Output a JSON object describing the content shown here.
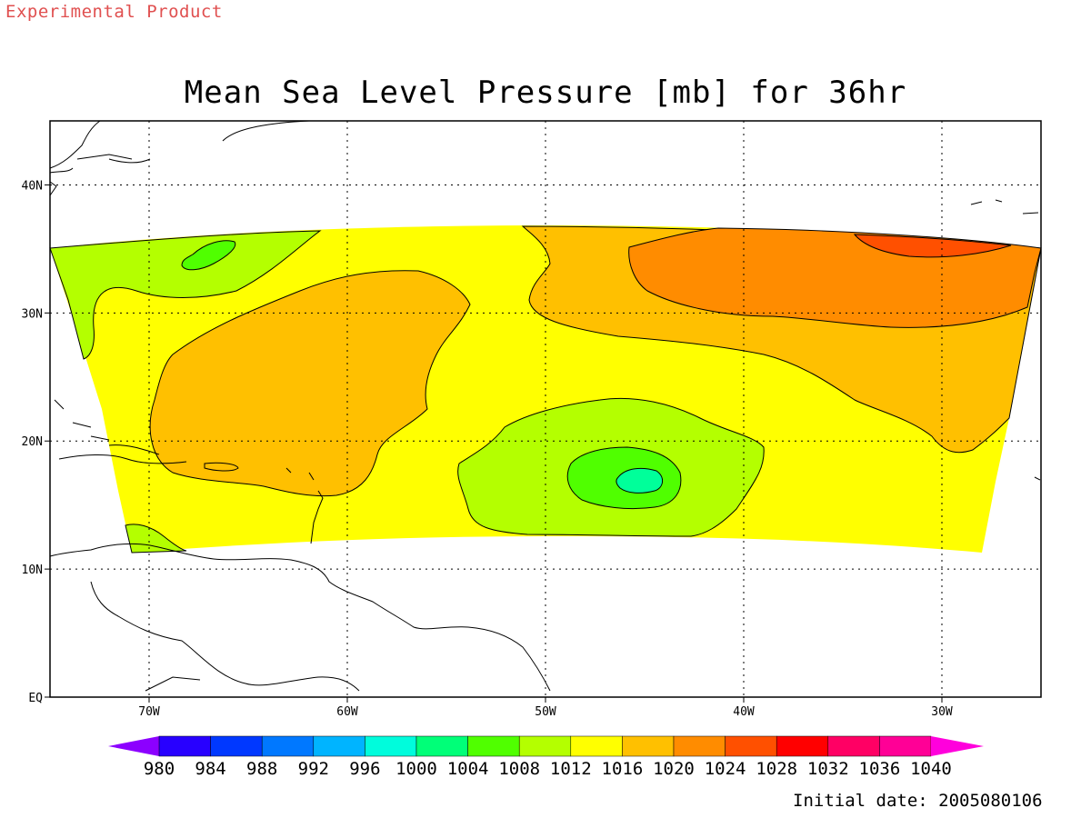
{
  "product_label": "Experimental Product",
  "title": "Mean Sea Level Pressure [mb] for 36hr",
  "initial_date": "Initial date: 2005080106",
  "map": {
    "projection": "lon-lat",
    "lon_range": [
      -75,
      -25
    ],
    "lat_range": [
      0,
      45
    ],
    "grid": "dotted",
    "lon_ticks": [
      {
        "value": -70,
        "label": "70W"
      },
      {
        "value": -60,
        "label": "60W"
      },
      {
        "value": -50,
        "label": "50W"
      },
      {
        "value": -40,
        "label": "40W"
      },
      {
        "value": -30,
        "label": "30W"
      }
    ],
    "lat_ticks": [
      {
        "value": 0,
        "label": "EQ"
      },
      {
        "value": 10,
        "label": "10N"
      },
      {
        "value": 20,
        "label": "20N"
      },
      {
        "value": 30,
        "label": "30N"
      },
      {
        "value": 40,
        "label": "40N"
      }
    ],
    "pressure_fields": [
      {
        "level": "1016-1020",
        "color": "#ffff00"
      },
      {
        "level": "1020-1024",
        "color": "#ffc000"
      },
      {
        "level": "1024-1028",
        "color": "#ff8c00"
      },
      {
        "level": "1028-1032",
        "color": "#ff5000"
      },
      {
        "level": "1012-1016",
        "color": "#b4ff00"
      },
      {
        "level": "1008-1012",
        "color": "#50ff00"
      },
      {
        "level": "1004-1008",
        "color": "#00ff9a"
      }
    ]
  },
  "colorbar": {
    "labels": [
      "980",
      "984",
      "988",
      "992",
      "996",
      "1000",
      "1004",
      "1008",
      "1012",
      "1016",
      "1020",
      "1024",
      "1028",
      "1032",
      "1036",
      "1040"
    ],
    "colors": [
      "#8c00ff",
      "#2800ff",
      "#0038ff",
      "#0078ff",
      "#00b4ff",
      "#00fcdc",
      "#00ff78",
      "#50ff00",
      "#b4ff00",
      "#ffff00",
      "#ffc000",
      "#ff8c00",
      "#ff5000",
      "#ff0000",
      "#ff0064",
      "#ff0096",
      "#ff00dc"
    ]
  }
}
